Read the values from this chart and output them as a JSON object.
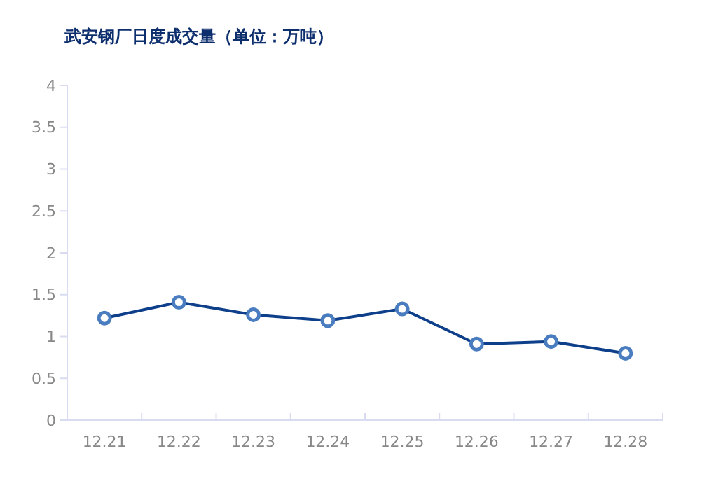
{
  "chart_data": {
    "type": "line",
    "title": "武安钢厂日度成交量（单位：万吨）",
    "categories": [
      "12.21",
      "12.22",
      "12.23",
      "12.24",
      "12.25",
      "12.26",
      "12.27",
      "12.28"
    ],
    "series": [
      {
        "color": "#0e3f8a",
        "values": [
          1.22,
          1.41,
          1.26,
          1.19,
          1.33,
          0.91,
          0.94,
          0.8
        ]
      }
    ],
    "ylim": [
      0,
      4
    ],
    "yticks": [
      0,
      0.5,
      1,
      1.5,
      2,
      2.5,
      3,
      3.5,
      4
    ],
    "grid": false,
    "marker": "circle",
    "line_style": "solid"
  }
}
